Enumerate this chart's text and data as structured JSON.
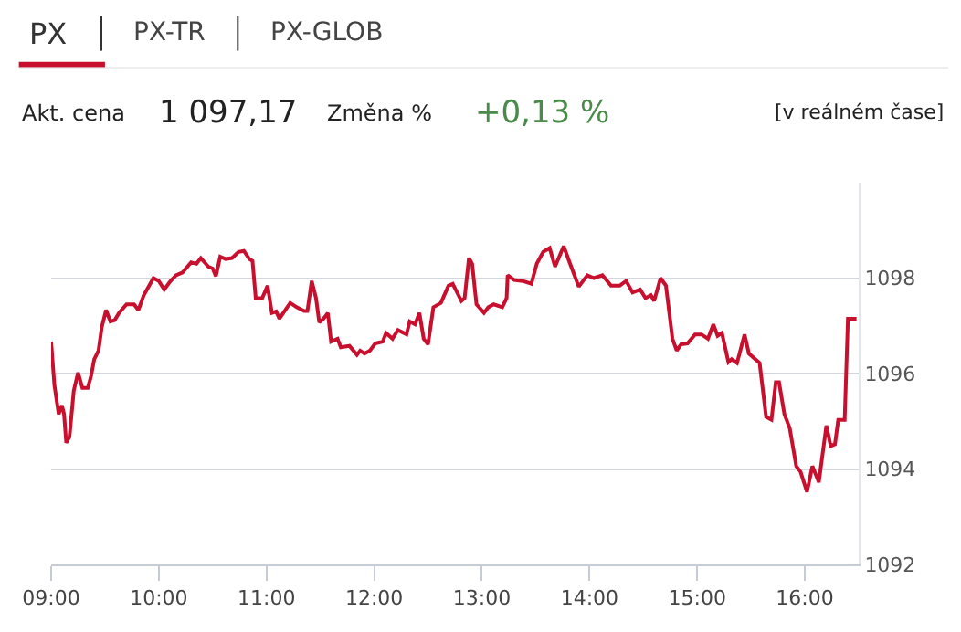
{
  "chart_data": {
    "type": "line",
    "annotations": [
      "PX",
      "PX-TR",
      "PX-GLOB",
      "Akt. cena",
      "1 097,17",
      "Změna %",
      "+0,13 %",
      "[v reálném čase]"
    ],
    "series": [
      {
        "color": "#c8102e",
        "x": [
          9.0,
          9.03,
          9.07,
          9.1,
          9.12,
          9.14,
          9.17,
          9.21,
          9.25,
          9.29,
          9.34,
          9.37,
          9.4,
          9.44,
          9.47,
          9.51,
          9.55,
          9.59,
          9.63,
          9.7,
          9.77,
          9.81,
          9.86,
          9.95,
          10.0,
          10.05,
          10.11,
          10.16,
          10.22,
          10.3,
          10.35,
          10.39,
          10.46,
          10.5,
          10.53,
          10.57,
          10.62,
          10.68,
          10.74,
          10.79,
          10.84,
          10.87,
          10.9,
          10.96,
          11.01,
          11.05,
          11.09,
          11.12,
          11.22,
          11.28,
          11.35,
          11.38,
          11.42,
          11.46,
          11.49,
          11.53,
          11.57,
          11.6,
          11.66,
          11.69,
          11.77,
          11.8,
          11.84,
          11.87,
          11.91,
          11.96,
          12.01,
          12.08,
          12.11,
          12.17,
          12.22,
          12.3,
          12.33,
          12.38,
          12.42,
          12.46,
          12.5,
          12.55,
          12.62,
          12.69,
          12.73,
          12.81,
          12.84,
          12.88,
          12.91,
          12.95,
          13.02,
          13.06,
          13.11,
          13.19,
          13.23,
          13.24,
          13.3,
          13.38,
          13.46,
          13.51,
          13.57,
          13.63,
          13.68,
          13.76,
          13.81,
          13.9,
          13.98,
          14.04,
          14.12,
          14.2,
          14.28,
          14.34,
          14.4,
          14.47,
          14.52,
          14.57,
          14.6,
          14.66,
          14.71,
          14.77,
          14.81,
          14.85,
          14.91,
          14.98,
          15.04,
          15.1,
          15.15,
          15.19,
          15.23,
          15.29,
          15.32,
          15.37,
          15.44,
          15.48,
          15.58,
          15.64,
          15.69,
          15.73,
          15.76,
          15.81,
          15.86,
          15.92,
          15.96,
          16.02,
          16.07,
          16.13,
          16.2,
          16.24,
          16.28,
          16.31,
          16.37,
          16.4,
          16.48
        ],
        "values": [
          1096.67,
          1095.76,
          1095.15,
          1095.33,
          1095.15,
          1094.55,
          1094.67,
          1095.64,
          1096.02,
          1095.7,
          1095.7,
          1095.94,
          1096.3,
          1096.48,
          1096.97,
          1097.33,
          1097.09,
          1097.12,
          1097.27,
          1097.45,
          1097.45,
          1097.33,
          1097.64,
          1098.0,
          1097.94,
          1097.76,
          1097.94,
          1098.06,
          1098.12,
          1098.33,
          1098.3,
          1098.42,
          1098.24,
          1098.2,
          1098.04,
          1098.45,
          1098.4,
          1098.42,
          1098.55,
          1098.57,
          1098.4,
          1098.36,
          1097.58,
          1097.58,
          1097.84,
          1097.27,
          1097.3,
          1097.15,
          1097.48,
          1097.39,
          1097.31,
          1097.31,
          1097.94,
          1097.58,
          1097.07,
          1097.15,
          1097.27,
          1096.67,
          1096.73,
          1096.55,
          1096.58,
          1096.5,
          1096.39,
          1096.48,
          1096.42,
          1096.48,
          1096.63,
          1096.67,
          1096.85,
          1096.73,
          1096.91,
          1096.82,
          1097.09,
          1097.03,
          1097.27,
          1096.73,
          1096.61,
          1097.39,
          1097.48,
          1097.84,
          1097.88,
          1097.52,
          1097.58,
          1098.42,
          1098.3,
          1097.45,
          1097.27,
          1097.39,
          1097.45,
          1097.39,
          1097.58,
          1098.06,
          1097.96,
          1097.94,
          1097.88,
          1098.3,
          1098.55,
          1098.63,
          1098.24,
          1098.67,
          1098.36,
          1097.82,
          1098.06,
          1098.0,
          1098.06,
          1097.84,
          1097.84,
          1097.94,
          1097.7,
          1097.76,
          1097.58,
          1097.64,
          1097.52,
          1098.0,
          1097.84,
          1096.73,
          1096.48,
          1096.61,
          1096.63,
          1096.82,
          1096.82,
          1096.73,
          1097.03,
          1096.79,
          1096.85,
          1096.24,
          1096.3,
          1096.22,
          1096.82,
          1096.42,
          1096.22,
          1095.09,
          1095.03,
          1095.82,
          1095.82,
          1095.15,
          1094.85,
          1094.06,
          1093.94,
          1093.52,
          1094.06,
          1093.72,
          1094.91,
          1094.48,
          1094.52,
          1095.03,
          1095.03,
          1097.15,
          1097.15
        ]
      }
    ],
    "xlim": [
      9,
      16.5
    ],
    "xticks": [
      {
        "value": 9,
        "label": "09:00"
      },
      {
        "value": 10,
        "label": "10:00"
      },
      {
        "value": 11,
        "label": "11:00"
      },
      {
        "value": 12,
        "label": "12:00"
      },
      {
        "value": 13,
        "label": "13:00"
      },
      {
        "value": 14,
        "label": "14:00"
      },
      {
        "value": 15,
        "label": "15:00"
      },
      {
        "value": 16,
        "label": "16:00"
      }
    ],
    "ylim": [
      1092,
      1100
    ],
    "yticks": [
      1092,
      1094,
      1096,
      1098
    ],
    "grid": "y",
    "marker": "none",
    "line_style": "solid"
  }
}
